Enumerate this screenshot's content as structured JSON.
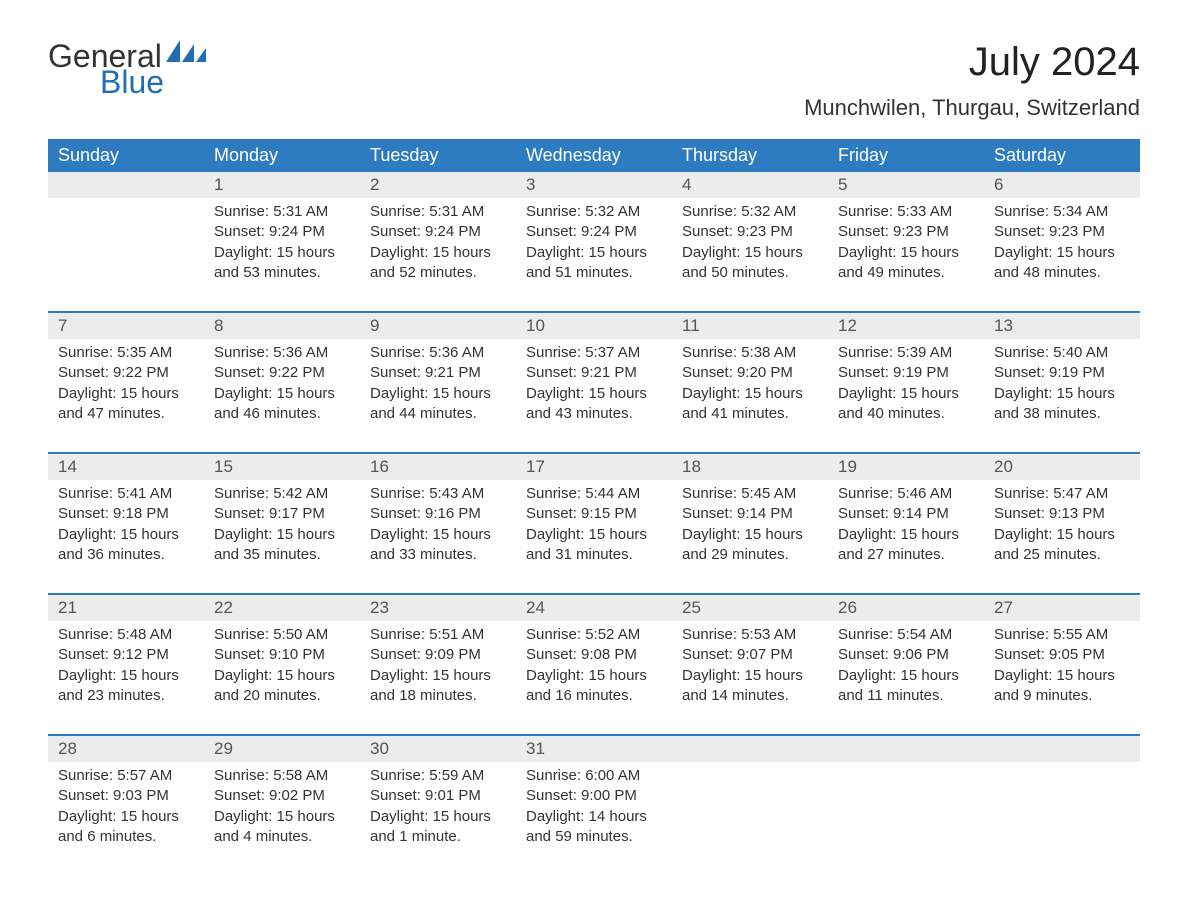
{
  "logo": {
    "word1": "General",
    "word2": "Blue"
  },
  "title": "July 2024",
  "location": "Munchwilen, Thurgau, Switzerland",
  "colors": {
    "header_blue": "#2d7bc0",
    "logo_blue": "#1f6fb2",
    "daynum_bg": "#ececec",
    "text": "#333333"
  },
  "weekdays": [
    "Sunday",
    "Monday",
    "Tuesday",
    "Wednesday",
    "Thursday",
    "Friday",
    "Saturday"
  ],
  "weeks": [
    [
      null,
      {
        "n": "1",
        "sr": "Sunrise: 5:31 AM",
        "ss": "Sunset: 9:24 PM",
        "d1": "Daylight: 15 hours",
        "d2": "and 53 minutes."
      },
      {
        "n": "2",
        "sr": "Sunrise: 5:31 AM",
        "ss": "Sunset: 9:24 PM",
        "d1": "Daylight: 15 hours",
        "d2": "and 52 minutes."
      },
      {
        "n": "3",
        "sr": "Sunrise: 5:32 AM",
        "ss": "Sunset: 9:24 PM",
        "d1": "Daylight: 15 hours",
        "d2": "and 51 minutes."
      },
      {
        "n": "4",
        "sr": "Sunrise: 5:32 AM",
        "ss": "Sunset: 9:23 PM",
        "d1": "Daylight: 15 hours",
        "d2": "and 50 minutes."
      },
      {
        "n": "5",
        "sr": "Sunrise: 5:33 AM",
        "ss": "Sunset: 9:23 PM",
        "d1": "Daylight: 15 hours",
        "d2": "and 49 minutes."
      },
      {
        "n": "6",
        "sr": "Sunrise: 5:34 AM",
        "ss": "Sunset: 9:23 PM",
        "d1": "Daylight: 15 hours",
        "d2": "and 48 minutes."
      }
    ],
    [
      {
        "n": "7",
        "sr": "Sunrise: 5:35 AM",
        "ss": "Sunset: 9:22 PM",
        "d1": "Daylight: 15 hours",
        "d2": "and 47 minutes."
      },
      {
        "n": "8",
        "sr": "Sunrise: 5:36 AM",
        "ss": "Sunset: 9:22 PM",
        "d1": "Daylight: 15 hours",
        "d2": "and 46 minutes."
      },
      {
        "n": "9",
        "sr": "Sunrise: 5:36 AM",
        "ss": "Sunset: 9:21 PM",
        "d1": "Daylight: 15 hours",
        "d2": "and 44 minutes."
      },
      {
        "n": "10",
        "sr": "Sunrise: 5:37 AM",
        "ss": "Sunset: 9:21 PM",
        "d1": "Daylight: 15 hours",
        "d2": "and 43 minutes."
      },
      {
        "n": "11",
        "sr": "Sunrise: 5:38 AM",
        "ss": "Sunset: 9:20 PM",
        "d1": "Daylight: 15 hours",
        "d2": "and 41 minutes."
      },
      {
        "n": "12",
        "sr": "Sunrise: 5:39 AM",
        "ss": "Sunset: 9:19 PM",
        "d1": "Daylight: 15 hours",
        "d2": "and 40 minutes."
      },
      {
        "n": "13",
        "sr": "Sunrise: 5:40 AM",
        "ss": "Sunset: 9:19 PM",
        "d1": "Daylight: 15 hours",
        "d2": "and 38 minutes."
      }
    ],
    [
      {
        "n": "14",
        "sr": "Sunrise: 5:41 AM",
        "ss": "Sunset: 9:18 PM",
        "d1": "Daylight: 15 hours",
        "d2": "and 36 minutes."
      },
      {
        "n": "15",
        "sr": "Sunrise: 5:42 AM",
        "ss": "Sunset: 9:17 PM",
        "d1": "Daylight: 15 hours",
        "d2": "and 35 minutes."
      },
      {
        "n": "16",
        "sr": "Sunrise: 5:43 AM",
        "ss": "Sunset: 9:16 PM",
        "d1": "Daylight: 15 hours",
        "d2": "and 33 minutes."
      },
      {
        "n": "17",
        "sr": "Sunrise: 5:44 AM",
        "ss": "Sunset: 9:15 PM",
        "d1": "Daylight: 15 hours",
        "d2": "and 31 minutes."
      },
      {
        "n": "18",
        "sr": "Sunrise: 5:45 AM",
        "ss": "Sunset: 9:14 PM",
        "d1": "Daylight: 15 hours",
        "d2": "and 29 minutes."
      },
      {
        "n": "19",
        "sr": "Sunrise: 5:46 AM",
        "ss": "Sunset: 9:14 PM",
        "d1": "Daylight: 15 hours",
        "d2": "and 27 minutes."
      },
      {
        "n": "20",
        "sr": "Sunrise: 5:47 AM",
        "ss": "Sunset: 9:13 PM",
        "d1": "Daylight: 15 hours",
        "d2": "and 25 minutes."
      }
    ],
    [
      {
        "n": "21",
        "sr": "Sunrise: 5:48 AM",
        "ss": "Sunset: 9:12 PM",
        "d1": "Daylight: 15 hours",
        "d2": "and 23 minutes."
      },
      {
        "n": "22",
        "sr": "Sunrise: 5:50 AM",
        "ss": "Sunset: 9:10 PM",
        "d1": "Daylight: 15 hours",
        "d2": "and 20 minutes."
      },
      {
        "n": "23",
        "sr": "Sunrise: 5:51 AM",
        "ss": "Sunset: 9:09 PM",
        "d1": "Daylight: 15 hours",
        "d2": "and 18 minutes."
      },
      {
        "n": "24",
        "sr": "Sunrise: 5:52 AM",
        "ss": "Sunset: 9:08 PM",
        "d1": "Daylight: 15 hours",
        "d2": "and 16 minutes."
      },
      {
        "n": "25",
        "sr": "Sunrise: 5:53 AM",
        "ss": "Sunset: 9:07 PM",
        "d1": "Daylight: 15 hours",
        "d2": "and 14 minutes."
      },
      {
        "n": "26",
        "sr": "Sunrise: 5:54 AM",
        "ss": "Sunset: 9:06 PM",
        "d1": "Daylight: 15 hours",
        "d2": "and 11 minutes."
      },
      {
        "n": "27",
        "sr": "Sunrise: 5:55 AM",
        "ss": "Sunset: 9:05 PM",
        "d1": "Daylight: 15 hours",
        "d2": "and 9 minutes."
      }
    ],
    [
      {
        "n": "28",
        "sr": "Sunrise: 5:57 AM",
        "ss": "Sunset: 9:03 PM",
        "d1": "Daylight: 15 hours",
        "d2": "and 6 minutes."
      },
      {
        "n": "29",
        "sr": "Sunrise: 5:58 AM",
        "ss": "Sunset: 9:02 PM",
        "d1": "Daylight: 15 hours",
        "d2": "and 4 minutes."
      },
      {
        "n": "30",
        "sr": "Sunrise: 5:59 AM",
        "ss": "Sunset: 9:01 PM",
        "d1": "Daylight: 15 hours",
        "d2": "and 1 minute."
      },
      {
        "n": "31",
        "sr": "Sunrise: 6:00 AM",
        "ss": "Sunset: 9:00 PM",
        "d1": "Daylight: 14 hours",
        "d2": "and 59 minutes."
      },
      null,
      null,
      null
    ]
  ]
}
